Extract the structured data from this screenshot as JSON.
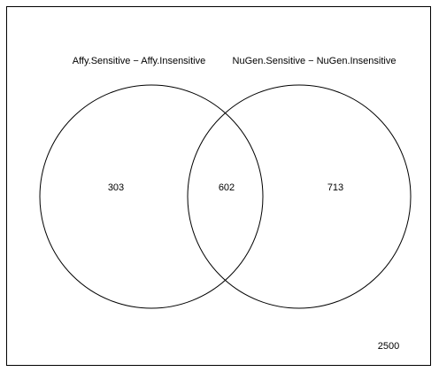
{
  "venn": {
    "set_a": {
      "label": "Affy.Sensitive − Affy.Insensitive",
      "only_count": "303"
    },
    "set_b": {
      "label": "NuGen.Sensitive − NuGen.Insensitive",
      "only_count": "713"
    },
    "intersection_count": "602",
    "universe_count": "2500"
  },
  "colors": {
    "background": "#ffffff",
    "stroke": "#000000",
    "text": "#000000"
  }
}
